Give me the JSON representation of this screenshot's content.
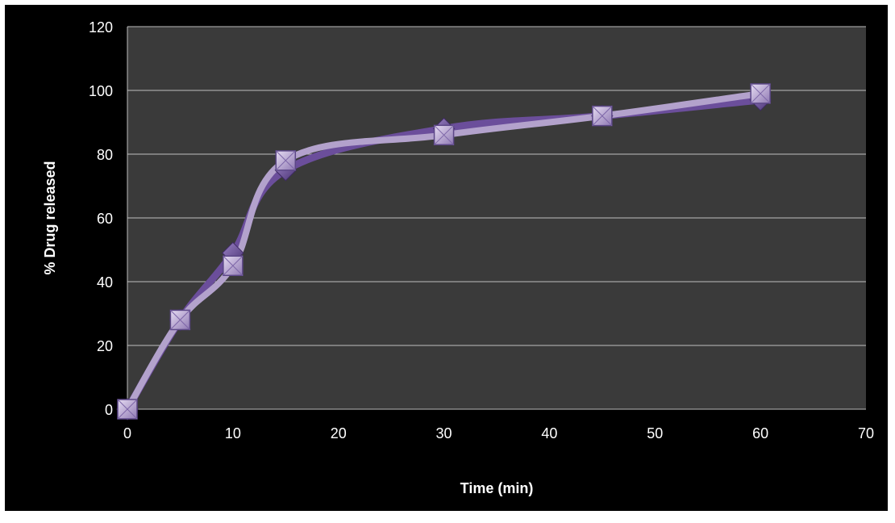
{
  "chart_data": {
    "type": "line",
    "title": "",
    "xlabel": "Time (min)",
    "ylabel": "% Drug released",
    "xlim": [
      0,
      70
    ],
    "ylim": [
      0,
      120
    ],
    "x_ticks": [
      0,
      10,
      20,
      30,
      40,
      50,
      60,
      70
    ],
    "y_ticks": [
      0,
      20,
      40,
      60,
      80,
      100,
      120
    ],
    "grid": true,
    "legend": "none",
    "x": [
      0,
      5,
      10,
      15,
      30,
      45,
      60
    ],
    "series": [
      {
        "values": [
          0,
          28,
          49,
          75,
          88,
          92,
          97
        ],
        "marker": "diamond",
        "color": "#6b4e9b"
      },
      {
        "values": [
          0,
          28,
          45,
          78,
          86,
          92,
          99
        ],
        "marker": "square",
        "color": "#b3a2cc"
      }
    ],
    "colors": {
      "background": "#000000",
      "plot_area": "#3a3a3a",
      "gridline": "#bdbdbd",
      "text": "#ffffff"
    }
  }
}
